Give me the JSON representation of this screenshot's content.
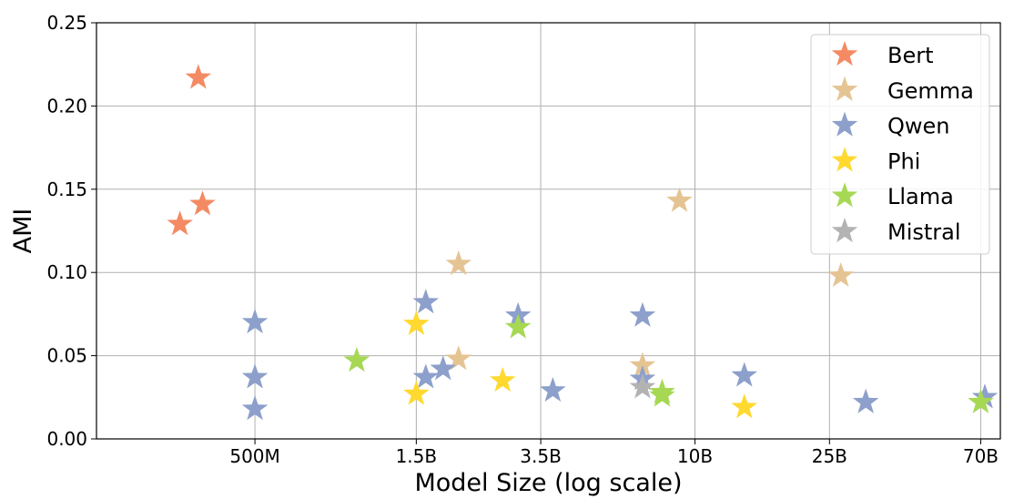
{
  "chart_data": {
    "type": "scatter",
    "title": "",
    "xlabel": "Model Size (log scale)",
    "ylabel": "AMI",
    "x_scale": "log",
    "x_ticks": [
      {
        "value": 0.5,
        "label": "500M"
      },
      {
        "value": 1.5,
        "label": "1.5B"
      },
      {
        "value": 3.5,
        "label": "3.5B"
      },
      {
        "value": 10,
        "label": "10B"
      },
      {
        "value": 25,
        "label": "25B"
      },
      {
        "value": 70,
        "label": "70B"
      }
    ],
    "xlim": [
      0.17,
      80
    ],
    "ylim": [
      0,
      0.25
    ],
    "y_ticks": [
      "0.00",
      "0.05",
      "0.10",
      "0.15",
      "0.20",
      "0.25"
    ],
    "grid": true,
    "marker": "star",
    "legend_position": "top-right",
    "series": [
      {
        "name": "Bert",
        "color": "#f48a63",
        "points": [
          [
            0.3,
            0.129
          ],
          [
            0.34,
            0.217
          ],
          [
            0.35,
            0.141
          ]
        ]
      },
      {
        "name": "Gemma",
        "color": "#e5c494",
        "points": [
          [
            2.0,
            0.105
          ],
          [
            2.0,
            0.048
          ],
          [
            7.0,
            0.044
          ],
          [
            9.0,
            0.143
          ],
          [
            27.0,
            0.098
          ]
        ]
      },
      {
        "name": "Qwen",
        "color": "#8da0cb",
        "points": [
          [
            0.5,
            0.07
          ],
          [
            0.5,
            0.037
          ],
          [
            0.5,
            0.018
          ],
          [
            1.6,
            0.082
          ],
          [
            1.6,
            0.037
          ],
          [
            1.8,
            0.042
          ],
          [
            3.0,
            0.074
          ],
          [
            3.8,
            0.029
          ],
          [
            7.0,
            0.074
          ],
          [
            7.0,
            0.036
          ],
          [
            14.0,
            0.038
          ],
          [
            32.0,
            0.022
          ],
          [
            72.0,
            0.025
          ]
        ]
      },
      {
        "name": "Phi",
        "color": "#ffd92f",
        "points": [
          [
            1.5,
            0.069
          ],
          [
            1.5,
            0.027
          ],
          [
            2.7,
            0.035
          ],
          [
            14.0,
            0.019
          ]
        ]
      },
      {
        "name": "Llama",
        "color": "#a6d854",
        "points": [
          [
            1.0,
            0.047
          ],
          [
            3.0,
            0.067
          ],
          [
            8.0,
            0.028
          ],
          [
            8.0,
            0.026
          ],
          [
            70.0,
            0.022
          ]
        ]
      },
      {
        "name": "Mistral",
        "color": "#b3b3b3",
        "points": [
          [
            7.0,
            0.031
          ]
        ]
      }
    ]
  }
}
